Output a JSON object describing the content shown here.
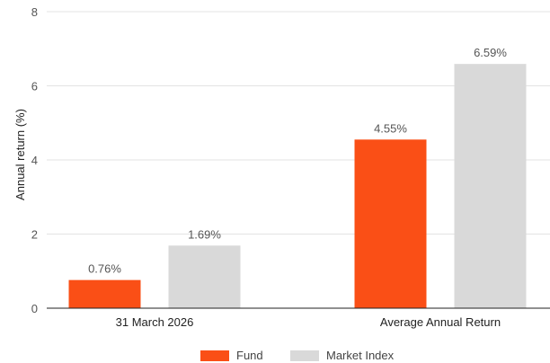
{
  "chart_data": {
    "type": "bar",
    "categories": [
      "31 March 2026",
      "Average Annual Return"
    ],
    "series": [
      {
        "name": "Fund",
        "values": [
          0.76,
          4.55
        ],
        "labels": [
          "0.76%",
          "4.55%"
        ],
        "color": "#FA4F16"
      },
      {
        "name": "Market Index",
        "values": [
          1.69,
          6.59
        ],
        "labels": [
          "1.69%",
          "6.59%"
        ],
        "color": "#D9D9D9"
      }
    ],
    "ylabel": "Annual return (%)",
    "ylim": [
      0,
      8
    ],
    "yticks": [
      "0",
      "2",
      "4",
      "6",
      "8"
    ],
    "grid": true,
    "legend_position": "bottom"
  }
}
